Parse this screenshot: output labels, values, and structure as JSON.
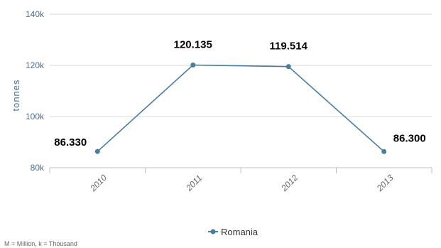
{
  "chart_data": {
    "type": "line",
    "x": [
      "2010",
      "2011",
      "2012",
      "2013"
    ],
    "series": [
      {
        "name": "Romania",
        "values": [
          86330,
          120135,
          119514,
          86300
        ],
        "labels": [
          "86.330",
          "120.135",
          "119.514",
          "86.300"
        ]
      }
    ],
    "ylabel": "tonnes",
    "ylim": [
      80000,
      140000
    ],
    "yticks": [
      80000,
      100000,
      120000,
      140000
    ],
    "ytick_labels": [
      "80k",
      "100k",
      "120k",
      "140k"
    ],
    "grid": true,
    "legend": "bottom-center",
    "line_color": "#4a7c9b"
  },
  "footnote": "M = Million, k = Thousand"
}
